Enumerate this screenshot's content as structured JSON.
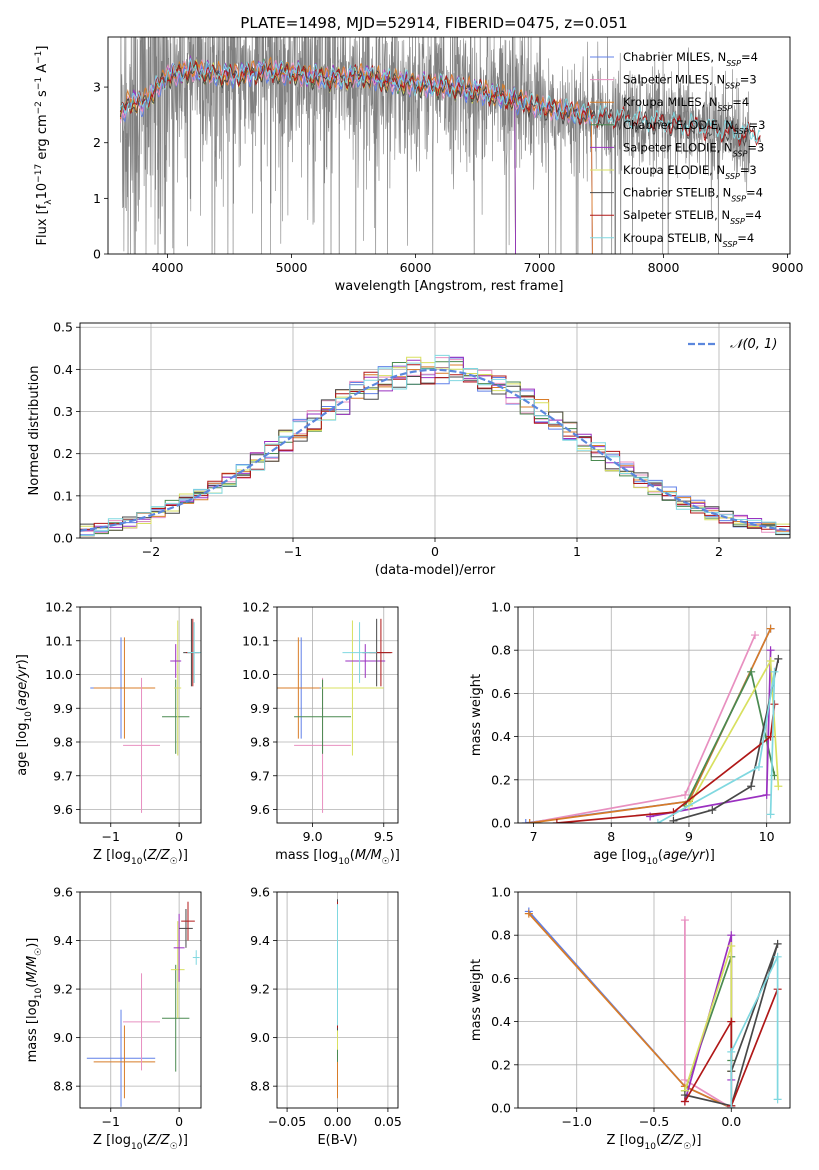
{
  "colors": {
    "Chabrier MILES": "#6080e8",
    "Salpeter MILES": "#e890c0",
    "Kroupa MILES": "#d87c28",
    "Chabrier ELODIE": "#4a8a50",
    "Salpeter ELODIE": "#9a30c0",
    "Kroupa ELODIE": "#d8e060",
    "Chabrier STELIB": "#484848",
    "Salpeter STELIB": "#b01818",
    "Kroupa STELIB": "#80d8e0",
    "data": "#808080",
    "normal_curve": "#5b87dd",
    "grid": "#b0b0b0"
  },
  "chart_data": [
    {
      "id": "spectrum",
      "type": "line",
      "title": "PLATE=1498, MJD=52914, FIBERID=0475, z=0.051",
      "xlabel": "wavelength [Angstrom, rest frame]",
      "ylabel": "Flux [f_λ10^-17 erg cm^-2 s^-1 A^-1]",
      "xlim": [
        3520,
        9020
      ],
      "ylim": [
        0,
        3.9
      ],
      "xticks": [
        "4000",
        "5000",
        "6000",
        "7000",
        "8000",
        "9000"
      ],
      "yticks": [
        "0",
        "1",
        "2",
        "3"
      ],
      "grid": false,
      "legend_position": "top-right",
      "legend": [
        {
          "text": "Chabrier MILES, N",
          "sub": "SSP",
          "suffix": "=4",
          "color_key": "Chabrier MILES"
        },
        {
          "text": "Salpeter MILES, N",
          "sub": "SSP",
          "suffix": "=3",
          "color_key": "Salpeter MILES"
        },
        {
          "text": "Kroupa MILES, N",
          "sub": "SSP",
          "suffix": "=4",
          "color_key": "Kroupa MILES"
        },
        {
          "text": "Chabrier ELODIE, N",
          "sub": "SSP",
          "suffix": "=3",
          "color_key": "Chabrier ELODIE"
        },
        {
          "text": "Salpeter ELODIE, N",
          "sub": "SSP",
          "suffix": "=3",
          "color_key": "Salpeter ELODIE"
        },
        {
          "text": "Kroupa ELODIE, N",
          "sub": "SSP",
          "suffix": "=3",
          "color_key": "Kroupa ELODIE"
        },
        {
          "text": "Chabrier STELIB, N",
          "sub": "SSP",
          "suffix": "=4",
          "color_key": "Chabrier STELIB"
        },
        {
          "text": "Salpeter STELIB, N",
          "sub": "SSP",
          "suffix": "=4",
          "color_key": "Salpeter STELIB"
        },
        {
          "text": "Kroupa STELIB, N",
          "sub": "SSP",
          "suffix": "=4",
          "color_key": "Kroupa STELIB"
        }
      ],
      "observed": {
        "x_range": [
          3620,
          8700
        ],
        "model_continuum": [
          [
            3620,
            2.5
          ],
          [
            3700,
            2.75
          ],
          [
            3800,
            2.7
          ],
          [
            3900,
            2.95
          ],
          [
            4000,
            3.2
          ],
          [
            4200,
            3.3
          ],
          [
            4500,
            3.2
          ],
          [
            4800,
            3.3
          ],
          [
            5000,
            3.25
          ],
          [
            5300,
            3.15
          ],
          [
            5600,
            3.2
          ],
          [
            5800,
            3.1
          ],
          [
            6000,
            3.05
          ],
          [
            6300,
            3.0
          ],
          [
            6600,
            2.88
          ],
          [
            7000,
            2.65
          ],
          [
            7400,
            2.5
          ],
          [
            7800,
            2.4
          ],
          [
            8200,
            2.3
          ],
          [
            8700,
            2.15
          ]
        ]
      },
      "model_ranges": {
        "MILES": [
          3620,
          7420
        ],
        "ELODIE": [
          3620,
          6800
        ],
        "STELIB": [
          3620,
          8780
        ]
      }
    },
    {
      "id": "residuals",
      "type": "histogram",
      "xlabel": "(data-model)/error",
      "ylabel": "Normed distribution",
      "xlim": [
        -2.5,
        2.5
      ],
      "ylim": [
        0,
        0.51
      ],
      "xticks": [
        "−2",
        "−1",
        "0",
        "1",
        "2"
      ],
      "yticks": [
        "0.0",
        "0.1",
        "0.2",
        "0.3",
        "0.4",
        "0.5"
      ],
      "grid": true,
      "legend_position": "top-right",
      "curve_label": "𝒩(0, 1)",
      "bin_width": 0.1
    },
    {
      "id": "age_vs_Z",
      "type": "scatter",
      "xlabel": "Z [log10(Z/Z☉)]",
      "ylabel": "age  [log10(age/yr)]",
      "xlim": [
        -1.45,
        0.32
      ],
      "ylim": [
        9.56,
        10.2
      ],
      "xticks": [
        "−1",
        "0"
      ],
      "yticks": [
        "9.6",
        "9.7",
        "9.8",
        "9.9",
        "10.0",
        "10.1",
        "10.2"
      ],
      "grid": true,
      "points": [
        {
          "series": "Chabrier MILES",
          "x": -0.85,
          "y": 9.96,
          "xerr": 0.45,
          "yerr": 0.15
        },
        {
          "series": "Kroupa MILES",
          "x": -0.8,
          "y": 9.96,
          "xerr": 0.45,
          "yerr": 0.15
        },
        {
          "series": "Salpeter MILES",
          "x": -0.55,
          "y": 9.79,
          "xerr": 0.27,
          "yerr": 0.2
        },
        {
          "series": "Chabrier ELODIE",
          "x": -0.05,
          "y": 9.875,
          "xerr": 0.2,
          "yerr": 0.11
        },
        {
          "series": "Kroupa ELODIE",
          "x": -0.02,
          "y": 9.96,
          "xerr": 0.05,
          "yerr": 0.2
        },
        {
          "series": "Salpeter ELODIE",
          "x": -0.05,
          "y": 10.04,
          "xerr": 0.08,
          "yerr": 0.05
        },
        {
          "series": "Chabrier STELIB",
          "x": 0.18,
          "y": 10.065,
          "xerr": 0.12,
          "yerr": 0.1
        },
        {
          "series": "Salpeter STELIB",
          "x": 0.2,
          "y": 10.065,
          "xerr": 0.1,
          "yerr": 0.1
        },
        {
          "series": "Kroupa STELIB",
          "x": 0.22,
          "y": 10.065,
          "xerr": 0.1,
          "yerr": 0.09
        }
      ]
    },
    {
      "id": "age_vs_mass",
      "type": "scatter",
      "xlabel": "mass [log10(M/M☉)]",
      "ylabel": "",
      "xlim": [
        8.75,
        9.6
      ],
      "ylim": [
        9.56,
        10.2
      ],
      "xticks": [
        "9.0",
        "9.5"
      ],
      "yticks": [
        "9.6",
        "9.7",
        "9.8",
        "9.9",
        "10.0",
        "10.1",
        "10.2"
      ],
      "grid": true,
      "points": [
        {
          "series": "Chabrier MILES",
          "x": 8.92,
          "y": 9.96,
          "xerr": 0.15,
          "yerr": 0.15
        },
        {
          "series": "Kroupa MILES",
          "x": 8.9,
          "y": 9.96,
          "xerr": 0.15,
          "yerr": 0.15
        },
        {
          "series": "Salpeter MILES",
          "x": 9.07,
          "y": 9.79,
          "xerr": 0.2,
          "yerr": 0.2
        },
        {
          "series": "Chabrier ELODIE",
          "x": 9.07,
          "y": 9.875,
          "xerr": 0.2,
          "yerr": 0.11
        },
        {
          "series": "Kroupa ELODIE",
          "x": 9.28,
          "y": 9.96,
          "xerr": 0.22,
          "yerr": 0.2
        },
        {
          "series": "Salpeter ELODIE",
          "x": 9.37,
          "y": 10.04,
          "xerr": 0.14,
          "yerr": 0.05
        },
        {
          "series": "Chabrier STELIB",
          "x": 9.45,
          "y": 10.065,
          "xerr": 0.1,
          "yerr": 0.1
        },
        {
          "series": "Salpeter STELIB",
          "x": 9.48,
          "y": 10.065,
          "xerr": 0.08,
          "yerr": 0.1
        },
        {
          "series": "Kroupa STELIB",
          "x": 9.33,
          "y": 10.065,
          "xerr": 0.12,
          "yerr": 0.09
        }
      ]
    },
    {
      "id": "weight_vs_age",
      "type": "line",
      "xlabel": "age  [log10(age/yr)]",
      "ylabel": "mass weight",
      "xlim": [
        6.8,
        10.3
      ],
      "ylim": [
        0,
        1.0
      ],
      "xticks": [
        "7",
        "8",
        "9",
        "10"
      ],
      "yticks": [
        "0.0",
        "0.2",
        "0.4",
        "0.6",
        "0.8",
        "1.0"
      ],
      "grid": true,
      "series": [
        {
          "name": "Chabrier MILES",
          "points": [
            [
              6.9,
              0.0
            ],
            [
              9.0,
              0.1
            ],
            [
              10.05,
              0.9
            ]
          ]
        },
        {
          "name": "Salpeter MILES",
          "points": [
            [
              6.95,
              0.0
            ],
            [
              8.95,
              0.13
            ],
            [
              9.85,
              0.87
            ]
          ]
        },
        {
          "name": "Kroupa MILES",
          "points": [
            [
              6.95,
              0.0
            ],
            [
              9.0,
              0.1
            ],
            [
              10.05,
              0.9
            ]
          ]
        },
        {
          "name": "Chabrier ELODIE",
          "points": [
            [
              8.95,
              0.08
            ],
            [
              9.8,
              0.7
            ],
            [
              10.1,
              0.22
            ]
          ]
        },
        {
          "name": "Salpeter ELODIE",
          "points": [
            [
              8.5,
              0.03
            ],
            [
              10.0,
              0.13
            ],
            [
              10.05,
              0.8
            ]
          ]
        },
        {
          "name": "Kroupa ELODIE",
          "points": [
            [
              9.0,
              0.08
            ],
            [
              10.05,
              0.75
            ],
            [
              10.15,
              0.17
            ]
          ]
        },
        {
          "name": "Chabrier STELIB",
          "points": [
            [
              8.8,
              0.01
            ],
            [
              9.3,
              0.06
            ],
            [
              9.8,
              0.17
            ],
            [
              10.15,
              0.76
            ]
          ]
        },
        {
          "name": "Salpeter STELIB",
          "points": [
            [
              7.3,
              0.0
            ],
            [
              8.8,
              0.05
            ],
            [
              10.05,
              0.4
            ],
            [
              10.1,
              0.55
            ]
          ]
        },
        {
          "name": "Kroupa STELIB",
          "points": [
            [
              8.6,
              0.0
            ],
            [
              9.9,
              0.26
            ],
            [
              10.1,
              0.7
            ],
            [
              10.05,
              0.04
            ]
          ]
        }
      ]
    },
    {
      "id": "mass_vs_Z",
      "type": "scatter",
      "xlabel": "Z [log10(Z/Z☉)]",
      "ylabel": "mass [log10(M/M☉)]",
      "xlim": [
        -1.45,
        0.32
      ],
      "ylim": [
        8.71,
        9.6
      ],
      "xticks": [
        "−1",
        "0"
      ],
      "yticks": [
        "8.8",
        "9.0",
        "9.2",
        "9.4",
        "9.6"
      ],
      "grid": true,
      "points": [
        {
          "series": "Chabrier MILES",
          "x": -0.85,
          "y": 8.915,
          "xerr": 0.5,
          "yerr": 0.2
        },
        {
          "series": "Kroupa MILES",
          "x": -0.8,
          "y": 8.9,
          "xerr": 0.45,
          "yerr": 0.15
        },
        {
          "series": "Salpeter MILES",
          "x": -0.55,
          "y": 9.065,
          "xerr": 0.27,
          "yerr": 0.2
        },
        {
          "series": "Chabrier ELODIE",
          "x": -0.05,
          "y": 9.08,
          "xerr": 0.2,
          "yerr": 0.22
        },
        {
          "series": "Kroupa ELODIE",
          "x": -0.02,
          "y": 9.28,
          "xerr": 0.1,
          "yerr": 0.2
        },
        {
          "series": "Salpeter ELODIE",
          "x": 0.0,
          "y": 9.37,
          "xerr": 0.08,
          "yerr": 0.14
        },
        {
          "series": "Chabrier STELIB",
          "x": 0.1,
          "y": 9.45,
          "xerr": 0.1,
          "yerr": 0.08
        },
        {
          "series": "Salpeter STELIB",
          "x": 0.13,
          "y": 9.48,
          "xerr": 0.1,
          "yerr": 0.08
        },
        {
          "series": "Kroupa STELIB",
          "x": 0.25,
          "y": 9.33,
          "xerr": 0.05,
          "yerr": 0.03
        }
      ]
    },
    {
      "id": "mass_vs_ebv",
      "type": "scatter",
      "xlabel": "E(B-V)",
      "ylabel": "",
      "xlim": [
        -0.06,
        0.06
      ],
      "ylim": [
        8.71,
        9.6
      ],
      "xticks": [
        "−0.05",
        "0.00",
        "0.05"
      ],
      "yticks": [
        "8.8",
        "9.0",
        "9.2",
        "9.4",
        "9.6"
      ],
      "grid": true,
      "points": [
        {
          "series": "Chabrier MILES",
          "x": 0.0,
          "y": 9.2,
          "xerr": 0.0,
          "yerr": 0.3
        },
        {
          "series": "Salpeter MILES",
          "x": 0.0,
          "y": 9.15,
          "xerr": 0.0,
          "yerr": 0.3
        },
        {
          "series": "Kroupa MILES",
          "x": 0.0,
          "y": 9.1,
          "xerr": 0.0,
          "yerr": 0.35
        },
        {
          "series": "Chabrier ELODIE",
          "x": 0.0,
          "y": 9.2,
          "xerr": 0.0,
          "yerr": 0.3
        },
        {
          "series": "Salpeter ELODIE",
          "x": 0.0,
          "y": 9.3,
          "xerr": 0.0,
          "yerr": 0.25
        },
        {
          "series": "Kroupa ELODIE",
          "x": 0.0,
          "y": 9.25,
          "xerr": 0.0,
          "yerr": 0.3
        },
        {
          "series": "Chabrier STELIB",
          "x": 0.0,
          "y": 9.3,
          "xerr": 0.0,
          "yerr": 0.27
        },
        {
          "series": "Salpeter STELIB",
          "x": 0.0,
          "y": 9.3,
          "xerr": 0.0,
          "yerr": 0.26
        },
        {
          "series": "Kroupa STELIB",
          "x": 0.0,
          "y": 9.3,
          "xerr": 0.0,
          "yerr": 0.25
        }
      ]
    },
    {
      "id": "weight_vs_Z",
      "type": "line",
      "xlabel": "Z [log10(Z/Z☉)]",
      "ylabel": "mass weight",
      "xlim": [
        -1.38,
        0.38
      ],
      "ylim": [
        0,
        1.0
      ],
      "xticks": [
        "−1.0",
        "−0.5",
        "0.0"
      ],
      "yticks": [
        "0.0",
        "0.2",
        "0.4",
        "0.6",
        "0.8",
        "1.0"
      ],
      "grid": true,
      "series": [
        {
          "name": "Chabrier MILES",
          "points": [
            [
              -1.31,
              0.91
            ],
            [
              -0.3,
              0.1
            ],
            [
              0.0,
              0.0
            ]
          ]
        },
        {
          "name": "Kroupa MILES",
          "points": [
            [
              -1.31,
              0.9
            ],
            [
              -0.3,
              0.1
            ],
            [
              0.0,
              0.0
            ]
          ]
        },
        {
          "name": "Salpeter MILES",
          "points": [
            [
              -0.3,
              0.87
            ],
            [
              -0.3,
              0.13
            ],
            [
              0.0,
              0.0
            ]
          ]
        },
        {
          "name": "Chabrier ELODIE",
          "points": [
            [
              -0.3,
              0.08
            ],
            [
              0.0,
              0.7
            ],
            [
              0.0,
              0.22
            ]
          ]
        },
        {
          "name": "Salpeter ELODIE",
          "points": [
            [
              -0.3,
              0.03
            ],
            [
              0.0,
              0.8
            ],
            [
              0.0,
              0.13
            ]
          ]
        },
        {
          "name": "Kroupa ELODIE",
          "points": [
            [
              -0.3,
              0.08
            ],
            [
              0.0,
              0.75
            ],
            [
              0.0,
              0.17
            ]
          ]
        },
        {
          "name": "Chabrier STELIB",
          "points": [
            [
              -0.3,
              0.06
            ],
            [
              0.0,
              0.01
            ],
            [
              0.3,
              0.76
            ],
            [
              0.0,
              0.17
            ]
          ]
        },
        {
          "name": "Salpeter STELIB",
          "points": [
            [
              -0.3,
              0.03
            ],
            [
              0.0,
              0.4
            ],
            [
              0.0,
              0.01
            ],
            [
              0.3,
              0.55
            ]
          ]
        },
        {
          "name": "Kroupa STELIB",
          "points": [
            [
              0.0,
              0.0
            ],
            [
              0.0,
              0.26
            ],
            [
              0.3,
              0.7
            ],
            [
              0.3,
              0.04
            ]
          ]
        }
      ]
    }
  ]
}
